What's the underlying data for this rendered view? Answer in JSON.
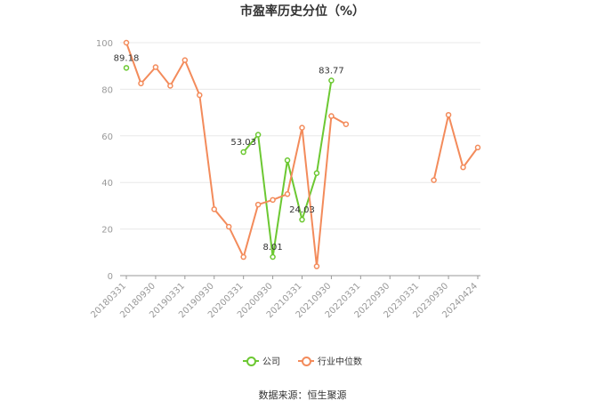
{
  "chart_data": {
    "type": "line",
    "title": "市盈率历史分位（%）",
    "source": "数据来源：恒生聚源",
    "ylim": [
      0,
      100
    ],
    "yticks": [
      0,
      20,
      40,
      60,
      80,
      100
    ],
    "xticks": [
      "20180331",
      "20180930",
      "20190331",
      "20190930",
      "20200331",
      "20200930",
      "20210331",
      "20210930",
      "20220331",
      "20220930",
      "20230331",
      "20230930",
      "20240424"
    ],
    "grid": true,
    "legend_position": "bottom",
    "series": [
      {
        "name": "公司",
        "color": "#6cc832",
        "points": [
          {
            "x": 0,
            "y": 89.18
          },
          {
            "x": 8,
            "y": 53.03
          },
          {
            "x": 9,
            "y": 60.5
          },
          {
            "x": 10,
            "y": 8.01
          },
          {
            "x": 11,
            "y": 49.5
          },
          {
            "x": 12,
            "y": 24.03
          },
          {
            "x": 13,
            "y": 44.0
          },
          {
            "x": 14,
            "y": 83.77
          }
        ],
        "segments": [
          [
            0
          ],
          [
            8,
            9,
            10,
            11,
            12,
            13,
            14
          ]
        ],
        "labels": [
          {
            "x": 0,
            "y": 89.18,
            "text": "89.18"
          },
          {
            "x": 8,
            "y": 53.03,
            "text": "53.03"
          },
          {
            "x": 10,
            "y": 8.01,
            "text": "8.01"
          },
          {
            "x": 12,
            "y": 24.03,
            "text": "24.03"
          },
          {
            "x": 14,
            "y": 83.77,
            "text": "83.77"
          }
        ]
      },
      {
        "name": "行业中位数",
        "color": "#f38b5b",
        "points": [
          {
            "x": 0,
            "y": 100.0
          },
          {
            "x": 1,
            "y": 82.5
          },
          {
            "x": 2,
            "y": 89.5
          },
          {
            "x": 3,
            "y": 81.5
          },
          {
            "x": 4,
            "y": 92.5
          },
          {
            "x": 5,
            "y": 77.5
          },
          {
            "x": 6,
            "y": 28.5
          },
          {
            "x": 7,
            "y": 21.0
          },
          {
            "x": 8,
            "y": 8.0
          },
          {
            "x": 9,
            "y": 30.5
          },
          {
            "x": 10,
            "y": 32.5
          },
          {
            "x": 11,
            "y": 35.0
          },
          {
            "x": 12,
            "y": 63.5
          },
          {
            "x": 13,
            "y": 4.0
          },
          {
            "x": 14,
            "y": 68.5
          },
          {
            "x": 15,
            "y": 65.0
          },
          {
            "x": 21,
            "y": 41.0
          },
          {
            "x": 22,
            "y": 69.0
          },
          {
            "x": 23,
            "y": 46.5
          },
          {
            "x": 24,
            "y": 55.0
          }
        ],
        "segments": [
          [
            0,
            1,
            2,
            3,
            4,
            5,
            6,
            7,
            8,
            9,
            10,
            11,
            12,
            13,
            14,
            15
          ],
          [
            21,
            22,
            23,
            24
          ]
        ]
      }
    ]
  }
}
